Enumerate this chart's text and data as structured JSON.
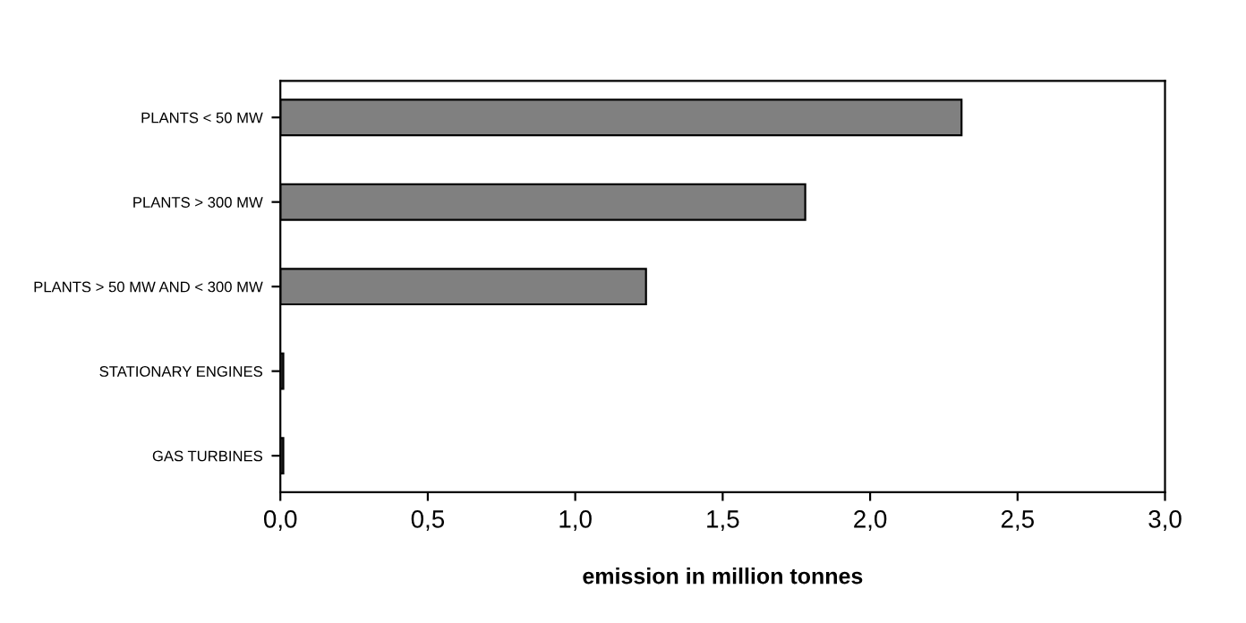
{
  "chart_data": {
    "type": "bar",
    "orientation": "horizontal",
    "categories": [
      "PLANTS < 50 MW",
      "PLANTS > 300 MW",
      "PLANTS > 50 MW AND < 300 MW",
      "STATIONARY ENGINES",
      "GAS TURBINES"
    ],
    "values": [
      2.31,
      1.78,
      1.24,
      0.01,
      0.01
    ],
    "colors": [
      "#808080",
      "#808080",
      "#808080",
      "#404040",
      "#404040"
    ],
    "xlabel": "emission in million tonnes",
    "xlim": [
      0,
      3
    ],
    "xticks": [
      {
        "value": 0,
        "label": "0,0"
      },
      {
        "value": 0.5,
        "label": "0,5"
      },
      {
        "value": 1,
        "label": "1,0"
      },
      {
        "value": 1.5,
        "label": "1,5"
      },
      {
        "value": 2,
        "label": "2,0"
      },
      {
        "value": 2.5,
        "label": "2,5"
      },
      {
        "value": 3,
        "label": "3,0"
      }
    ],
    "grid": false,
    "legend": false
  }
}
